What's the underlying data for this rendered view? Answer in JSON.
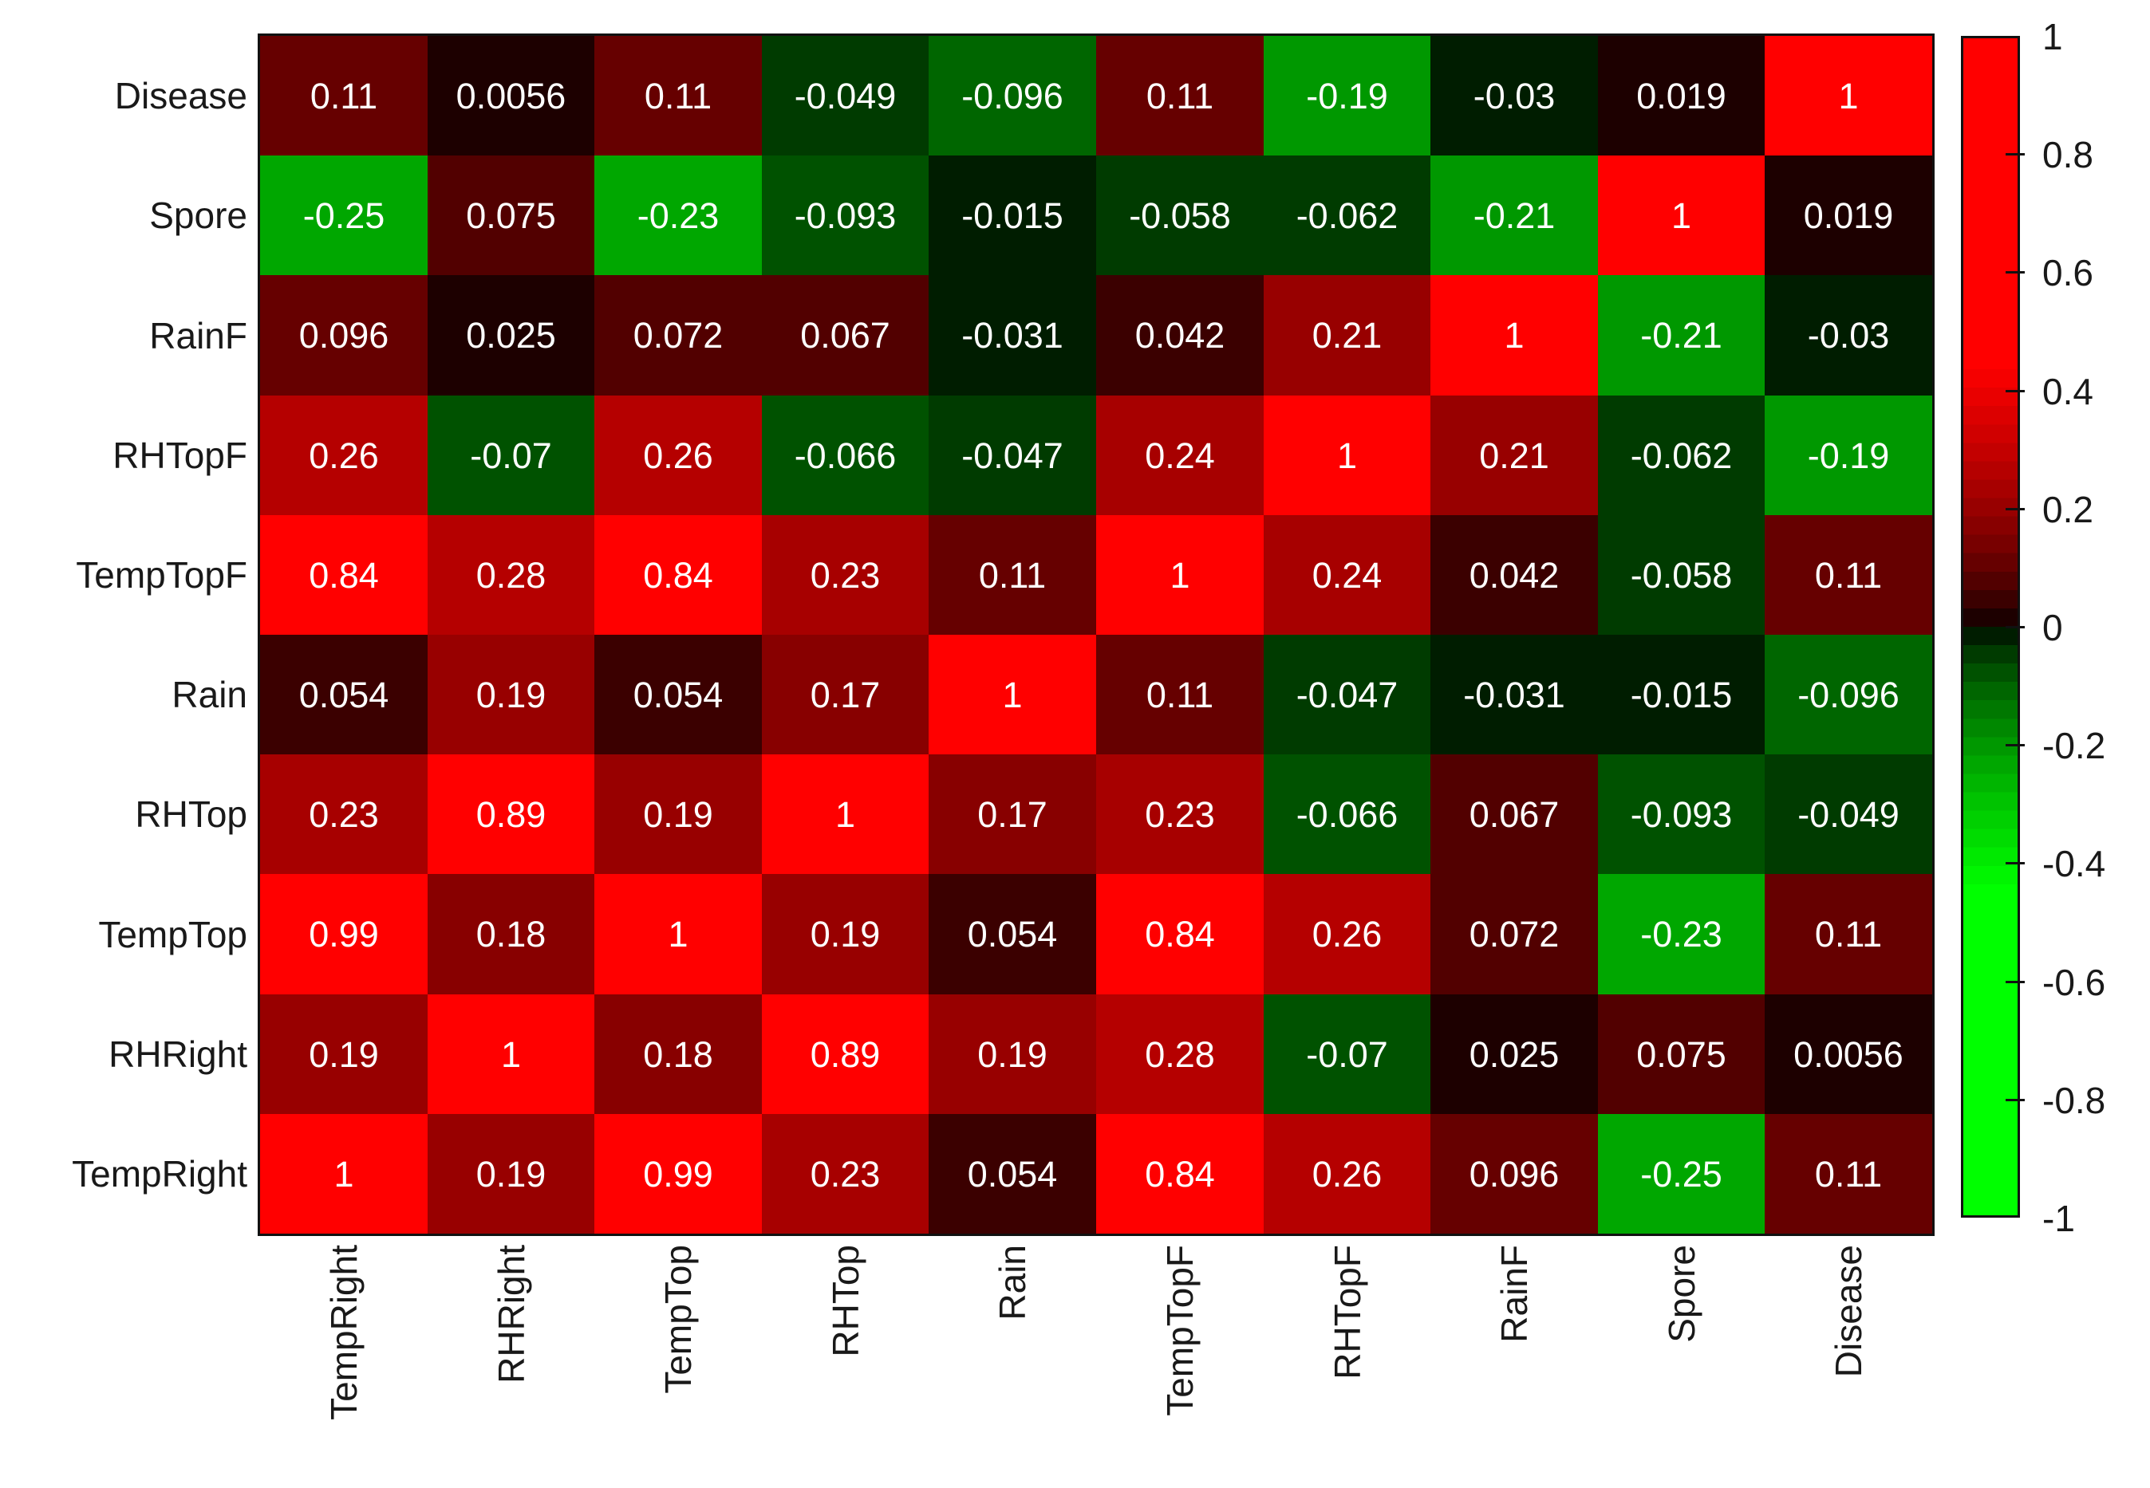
{
  "figure": {
    "background_color": "#ffffff",
    "cell_text_color": "#ffffff",
    "axis_text_color": "#191919",
    "axis_line_color": "#111111"
  },
  "chart_data": {
    "type": "heatmap",
    "title": "",
    "xlabel": "",
    "ylabel": "",
    "x_categories": [
      "TempRight",
      "RHRight",
      "TempTop",
      "RHTop",
      "Rain",
      "TempTopF",
      "RHTopF",
      "RainF",
      "Spore",
      "Disease"
    ],
    "y_categories": [
      "Disease",
      "Spore",
      "RainF",
      "RHTopF",
      "TempTopF",
      "Rain",
      "RHTop",
      "TempTop",
      "RHRight",
      "TempRight"
    ],
    "matrix": [
      [
        0.11,
        0.0056,
        0.11,
        -0.049,
        -0.096,
        0.11,
        -0.19,
        -0.03,
        0.019,
        1
      ],
      [
        -0.25,
        0.075,
        -0.23,
        -0.093,
        -0.015,
        -0.058,
        -0.062,
        -0.21,
        1,
        0.019
      ],
      [
        0.096,
        0.025,
        0.072,
        0.067,
        -0.031,
        0.042,
        0.21,
        1,
        -0.21,
        -0.03
      ],
      [
        0.26,
        -0.07,
        0.26,
        -0.066,
        -0.047,
        0.24,
        1,
        0.21,
        -0.062,
        -0.19
      ],
      [
        0.84,
        0.28,
        0.84,
        0.23,
        0.11,
        1,
        0.24,
        0.042,
        -0.058,
        0.11
      ],
      [
        0.054,
        0.19,
        0.054,
        0.17,
        1,
        0.11,
        -0.047,
        -0.031,
        -0.015,
        -0.096
      ],
      [
        0.23,
        0.89,
        0.19,
        1,
        0.17,
        0.23,
        -0.066,
        0.067,
        -0.093,
        -0.049
      ],
      [
        0.99,
        0.18,
        1,
        0.19,
        0.054,
        0.84,
        0.26,
        0.072,
        -0.23,
        0.11
      ],
      [
        0.19,
        1,
        0.18,
        0.89,
        0.19,
        0.28,
        -0.07,
        0.025,
        0.075,
        0.0056
      ],
      [
        1,
        0.19,
        0.99,
        0.23,
        0.054,
        0.84,
        0.26,
        0.096,
        -0.25,
        0.11
      ]
    ],
    "value_labels": [
      [
        "0.11",
        "0.0056",
        "0.11",
        "-0.049",
        "-0.096",
        "0.11",
        "-0.19",
        "-0.03",
        "0.019",
        "1"
      ],
      [
        "-0.25",
        "0.075",
        "-0.23",
        "-0.093",
        "-0.015",
        "-0.058",
        "-0.062",
        "-0.21",
        "1",
        "0.019"
      ],
      [
        "0.096",
        "0.025",
        "0.072",
        "0.067",
        "-0.031",
        "0.042",
        "0.21",
        "1",
        "-0.21",
        "-0.03"
      ],
      [
        "0.26",
        "-0.07",
        "0.26",
        "-0.066",
        "-0.047",
        "0.24",
        "1",
        "0.21",
        "-0.062",
        "-0.19"
      ],
      [
        "0.84",
        "0.28",
        "0.84",
        "0.23",
        "0.11",
        "1",
        "0.24",
        "0.042",
        "-0.058",
        "0.11"
      ],
      [
        "0.054",
        "0.19",
        "0.054",
        "0.17",
        "1",
        "0.11",
        "-0.047",
        "-0.031",
        "-0.015",
        "-0.096"
      ],
      [
        "0.23",
        "0.89",
        "0.19",
        "1",
        "0.17",
        "0.23",
        "-0.066",
        "0.067",
        "-0.093",
        "-0.049"
      ],
      [
        "0.99",
        "0.18",
        "1",
        "0.19",
        "0.054",
        "0.84",
        "0.26",
        "0.072",
        "-0.23",
        "0.11"
      ],
      [
        "0.19",
        "1",
        "0.18",
        "0.89",
        "0.19",
        "0.28",
        "-0.07",
        "0.025",
        "0.075",
        "0.0056"
      ],
      [
        "1",
        "0.19",
        "0.99",
        "0.23",
        "0.054",
        "0.84",
        "0.26",
        "0.096",
        "-0.25",
        "0.11"
      ]
    ],
    "value_range": [
      -1,
      1
    ],
    "colormap": {
      "style": "red-black-green diverging",
      "positive_color": "#ff0000",
      "zero_color": "#000000",
      "negative_color": "#00ff00",
      "levels": 64,
      "saturation_abs_value": 0.45,
      "gamma": 0.65
    },
    "colorbar": {
      "position": "right",
      "tick_labels": [
        "1",
        "0.8",
        "0.6",
        "0.4",
        "0.2",
        "0",
        "-0.2",
        "-0.4",
        "-0.6",
        "-0.8",
        "-1"
      ],
      "tick_values": [
        1,
        0.8,
        0.6,
        0.4,
        0.2,
        0,
        -0.2,
        -0.4,
        -0.6,
        -0.8,
        -1
      ]
    },
    "grid": false,
    "legend": false
  }
}
